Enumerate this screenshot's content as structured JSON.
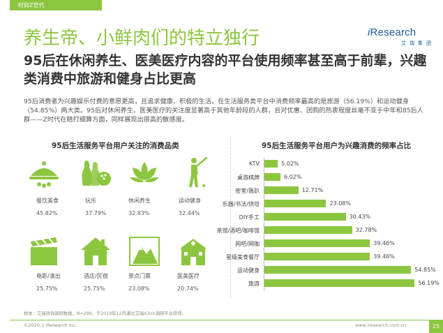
{
  "header": {
    "tag": "时尚Z世代",
    "title": "养生帝、小鲜肉们的特立独行",
    "subtitle": "95后在休闲养生、医美医疗内容的平台使用频率甚至高于前辈，兴趣类消费中旅游和健身占比更高",
    "description": "95后消费者为兴趣娱乐付费的意愿更高，且追求健康、积极的生活，在生活服务类平台中消费频率最高的是旅游（56.19%）和运动健身（54.85%）两大类。95后对休闲养生、医美医疗的关注度显著高于其他年龄段的人群，且对优惠、团购的热衷程度丝毫不亚于中年和85后人群——Z时代在精打细算方面，同样展现出很高的敏感度。"
  },
  "logo": {
    "prefix": "i",
    "main": "Research",
    "sub": "艾瑞集团"
  },
  "left_panel": {
    "title": "95后生活服务平台用户关注的消费品类",
    "categories": [
      {
        "label": "餐饮美食",
        "value": "45.82%",
        "icon": "dining-icon"
      },
      {
        "label": "玩乐",
        "value": "37.79%",
        "icon": "bowling-icon"
      },
      {
        "label": "休闲养生",
        "value": "32.83%",
        "icon": "lotus-icon"
      },
      {
        "label": "运动健身",
        "value": "32.44%",
        "icon": "golfer-icon"
      },
      {
        "label": "电影/演出",
        "value": "25.75%",
        "icon": "clapperboard-icon"
      },
      {
        "label": "酒店/民宿",
        "value": "25.75%",
        "icon": "house-icon"
      },
      {
        "label": "景点门票",
        "value": "23.08%",
        "icon": "mountain-icon"
      },
      {
        "label": "医美医疗",
        "value": "20.74%",
        "icon": "hospital-icon"
      }
    ]
  },
  "chart_data": {
    "type": "bar",
    "orientation": "horizontal",
    "title": "95后生活服务平台用户为兴趣消费的频率占比",
    "categories": [
      "KTV",
      "桌游棋牌",
      "密室/轰趴",
      "乐器/书法/烘培",
      "DIY手工",
      "茶馆/酒吧/咖啡馆",
      "网吧/网咖",
      "星级美食餐厅",
      "运动健身",
      "旅游"
    ],
    "values": [
      5.02,
      6.02,
      12.71,
      23.08,
      30.43,
      32.78,
      39.46,
      39.46,
      54.85,
      56.19
    ],
    "value_labels": [
      "5.02%",
      "6.02%",
      "12.71%",
      "23.08%",
      "30.43%",
      "32.78%",
      "39.46%",
      "39.46%",
      "54.85%",
      "56.19%"
    ],
    "xlim": [
      0,
      60
    ],
    "bar_color": "#8cc63f"
  },
  "footer": {
    "source": "样本：艾瑞咨询调研数据，N=299，于2019年12月通过艾瑞iClick调研平台获得。",
    "copyright": "©2020.1 iResearch Inc.",
    "site": "www.iresearch.com.cn",
    "page": "25"
  },
  "colors": {
    "accent": "#8cc63f",
    "logo": "#1a5aa0"
  }
}
